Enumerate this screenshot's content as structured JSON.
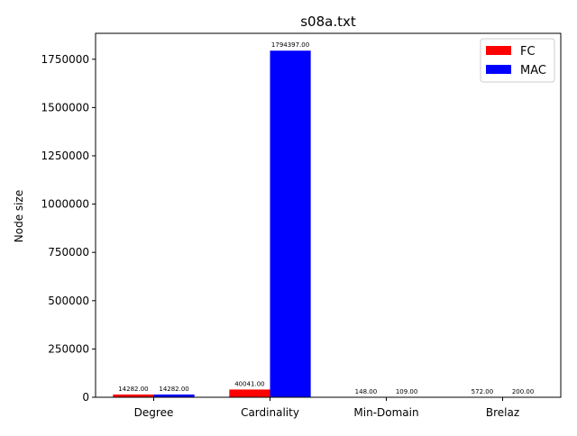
{
  "chart_data": {
    "type": "bar",
    "title": "s08a.txt",
    "xlabel": "",
    "ylabel": "Node size",
    "categories": [
      "Degree",
      "Cardinality",
      "Min-Domain",
      "Brelaz"
    ],
    "series": [
      {
        "name": "FC",
        "color": "#ff0000",
        "values": [
          14282,
          40041,
          148,
          572
        ],
        "labels": [
          "14282.00",
          "40041.00",
          "148.00",
          "572.00"
        ]
      },
      {
        "name": "MAC",
        "color": "#0000ff",
        "values": [
          14282,
          1794397,
          109,
          200
        ],
        "labels": [
          "14282.00",
          "1794397.00",
          "109.00",
          "200.00"
        ]
      }
    ],
    "ylim": [
      0,
      1884117
    ],
    "yticks": [
      0,
      250000,
      500000,
      750000,
      1000000,
      1250000,
      1500000,
      1750000
    ],
    "ytick_labels": [
      "0",
      "250000",
      "500000",
      "750000",
      "1000000",
      "1250000",
      "1500000",
      "1750000"
    ],
    "legend_position": "top-right",
    "grid": false
  }
}
